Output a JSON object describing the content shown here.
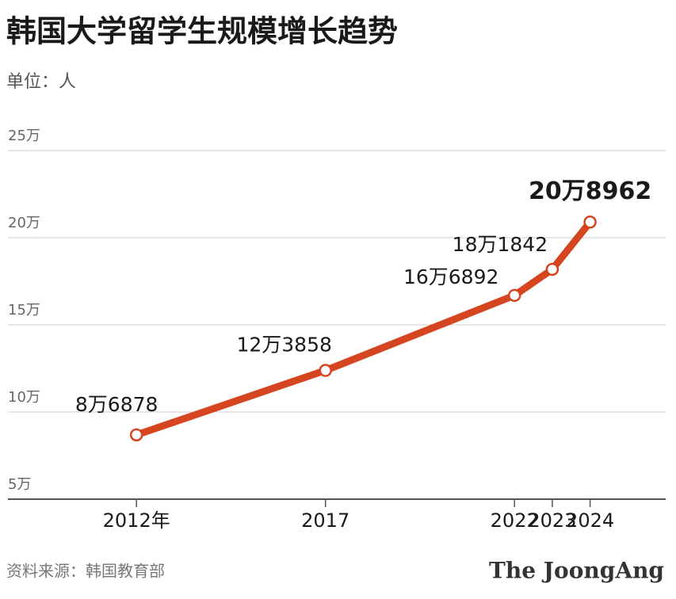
{
  "chart_data": {
    "type": "line",
    "title": "韩国大学留学生规模增长趋势",
    "subtitle": "单位：人",
    "x": [
      2012,
      2017,
      2022,
      2023,
      2024
    ],
    "series": [
      {
        "name": "留学生",
        "color": "#d5451f",
        "values": [
          86878,
          123858,
          166892,
          181842,
          208962
        ],
        "value_labels": [
          "8万6878",
          "12万3858",
          "16万6892",
          "18万1842",
          "20万8962"
        ]
      }
    ],
    "xlim": [
      2008.6,
      2026
    ],
    "xticks": [
      {
        "value": 2012,
        "label": "2012年"
      },
      2017,
      2022,
      2023,
      2024
    ],
    "ylim": [
      50000,
      250000
    ],
    "yticks": [
      {
        "value": 50000,
        "label": "5万"
      },
      {
        "value": 100000,
        "label": "10万"
      },
      {
        "value": 150000,
        "label": "15万"
      },
      {
        "value": 200000,
        "label": "20万"
      },
      {
        "value": 250000,
        "label": "25万"
      }
    ],
    "grid": true,
    "source": "资料来源：韩国教育部",
    "brand": "The JoongAng"
  }
}
